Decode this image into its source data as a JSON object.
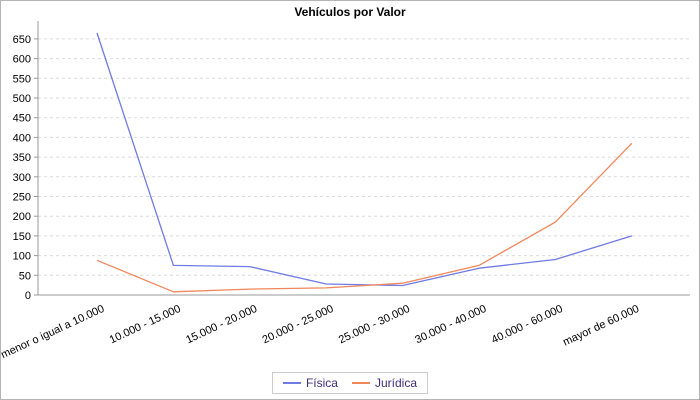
{
  "chart_data": {
    "type": "line",
    "title": "Vehículos por Valor",
    "categories": [
      "menor o igual a 10.000",
      "10.000 - 15.000",
      "15.000 - 20.000",
      "20.000 - 25.000",
      "25.000 - 30.000",
      "30.000 - 40.000",
      "40.000 - 60.000",
      "mayor de 60.000"
    ],
    "series": [
      {
        "name": "Física",
        "color": "#6F7BE3",
        "values": [
          665,
          75,
          72,
          28,
          24,
          68,
          90,
          150
        ]
      },
      {
        "name": "Jurídica",
        "color": "#F0875A",
        "values": [
          88,
          8,
          15,
          18,
          30,
          75,
          185,
          385
        ]
      }
    ],
    "xlabel": "",
    "ylabel": "",
    "ylim": [
      0,
      650
    ],
    "ytick_step": 50,
    "grid": "horizontal-dashed",
    "legend_position": "bottom-center",
    "colors": {
      "axis": "#999999",
      "grid": "#dbdbdb",
      "tick_label": "#000000",
      "legend_text": "#3F2D7E",
      "background": "#FFFFFF",
      "border": "#B4B4B4"
    }
  }
}
